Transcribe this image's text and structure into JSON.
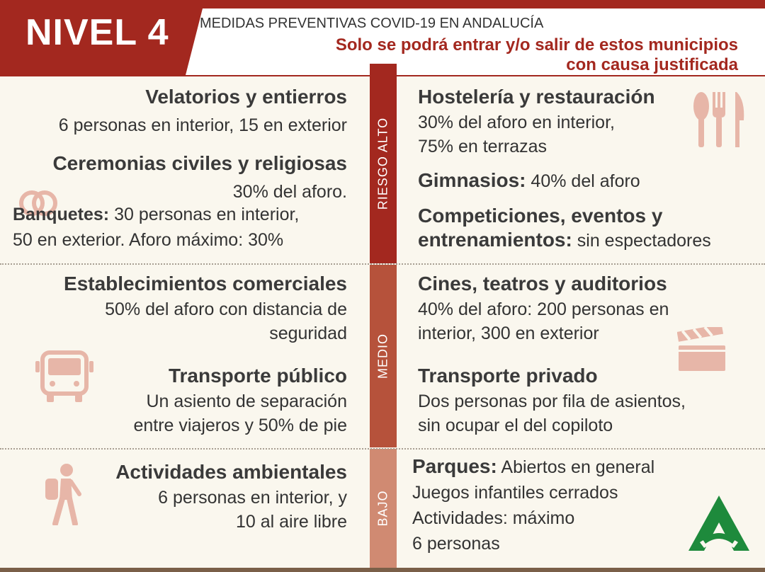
{
  "header": {
    "title": "NIVEL 4",
    "subtitle": "MEDIDAS PREVENTIVAS COVID-19 EN ANDALUCÍA",
    "notice_line1": "Solo se podrá entrar y/o salir de estos municipios",
    "notice_line2": "con causa justificada"
  },
  "risk_levels": {
    "alto": "RIESGO ALTO",
    "medio": "MEDIO",
    "bajo": "BAJO"
  },
  "left": {
    "velatorios": {
      "title": "Velatorios y entierros",
      "text": "6 personas en interior, 15 en exterior"
    },
    "ceremonias": {
      "title": "Ceremonias civiles y religiosas",
      "text": "30% del aforo."
    },
    "banquetes": {
      "label": "Banquetes:",
      "text1": " 30 personas en interior,",
      "text2": "50 en exterior. Aforo máximo: 30%"
    },
    "comerciales": {
      "title": "Establecimientos comerciales",
      "text1": "50% del aforo con distancia de",
      "text2": "seguridad"
    },
    "transporte_publico": {
      "title": "Transporte público",
      "text1": "Un asiento de separación",
      "text2": "entre viajeros y 50% de pie"
    },
    "ambientales": {
      "title": "Actividades ambientales",
      "text1": "6 personas en interior, y",
      "text2": "10 al aire libre"
    }
  },
  "right": {
    "hosteleria": {
      "title": "Hostelería y restauración",
      "text1": "30% del aforo en interior,",
      "text2": "75% en terrazas"
    },
    "gimnasios": {
      "label": "Gimnasios:",
      "text": " 40% del aforo"
    },
    "competiciones": {
      "title": "Competiciones, eventos y",
      "label": "entrenamientos:",
      "text": " sin espectadores"
    },
    "cines": {
      "title": "Cines, teatros y auditorios",
      "text1": "40% del aforo: 200 personas en",
      "text2": "interior, 300 en exterior"
    },
    "transporte_privado": {
      "title": "Transporte privado",
      "text1": "Dos personas por fila de asientos,",
      "text2": "sin ocupar el del copiloto"
    },
    "parques": {
      "label": "Parques:",
      "text1": " Abiertos en general",
      "text2": "Juegos infantiles cerrados",
      "text3": "Actividades: máximo",
      "text4": "6 personas"
    }
  },
  "icons": {
    "utensils": "fork-knife-icon",
    "rings": "wedding-rings-icon",
    "bus": "bus-icon",
    "clapperboard": "clapperboard-icon",
    "hiker": "hiker-icon",
    "logo": "junta-andalucia-logo"
  },
  "colors": {
    "alto": "#a3281f",
    "medio": "#b6523b",
    "bajo": "#d08a72",
    "icon": "#e7b6a8",
    "logo": "#1e8a3c"
  }
}
